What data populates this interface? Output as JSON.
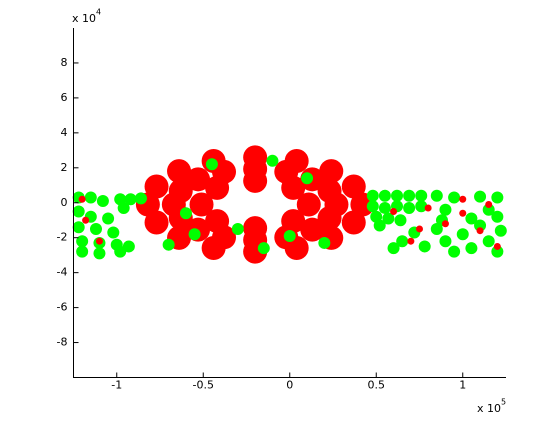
{
  "chart_data": {
    "type": "scatter",
    "x_multiplier": {
      "base": "x 10",
      "exponent": "5"
    },
    "y_multiplier": {
      "base": "x 10",
      "exponent": "4"
    },
    "xlim": [
      -1.25,
      1.25
    ],
    "xticks": [
      -1,
      -0.5,
      0,
      0.5,
      1
    ],
    "ylim": [
      -10,
      10
    ],
    "yticks": [
      -8,
      -6,
      -4,
      -2,
      0,
      2,
      4,
      6,
      8
    ],
    "grid": false,
    "series": [
      {
        "color": "#ff0000",
        "x": [
          0.42,
          0.37,
          0.24,
          0.04,
          -0.2,
          -0.44,
          -0.64,
          -0.77,
          -0.82,
          -0.77,
          -0.64,
          -0.44,
          -0.2,
          0.04,
          0.24,
          0.37,
          0.27,
          0.23,
          0.13,
          -0.02,
          -0.2,
          -0.38,
          -0.53,
          -0.63,
          -0.67,
          -0.63,
          -0.53,
          -0.38,
          -0.2,
          -0.02,
          0.13,
          0.23,
          0.11,
          0.02,
          -0.2,
          -0.42,
          -0.51,
          -0.42,
          -0.2,
          0.02
        ],
        "values": [
          -0.1,
          0.93,
          1.81,
          2.39,
          2.6,
          2.39,
          1.81,
          0.93,
          -0.1,
          -1.13,
          -2.01,
          -2.59,
          -2.8,
          -2.59,
          -2.01,
          -1.13,
          -0.1,
          0.68,
          1.34,
          1.77,
          1.93,
          1.77,
          1.34,
          0.68,
          -0.1,
          -0.88,
          -1.54,
          -1.98,
          -2.13,
          -1.98,
          -1.54,
          -0.88,
          -0.1,
          0.85,
          1.25,
          0.85,
          -0.1,
          -1.05,
          -1.45,
          -1.05
        ]
      },
      {
        "color": "#00ff00",
        "x": [
          -1.22,
          -1.15,
          -1.08,
          -1.22,
          -1.15,
          -1.05,
          -1.22,
          -1.12,
          -1.02,
          -1.2,
          -1.1,
          -1.0,
          -0.93,
          -1.2,
          -1.1,
          -0.98,
          -0.98,
          -0.92,
          -0.86,
          -0.96,
          0.48,
          0.55,
          0.62,
          0.69,
          0.76,
          0.48,
          0.55,
          0.62,
          0.69,
          0.76,
          0.5,
          0.57,
          0.64,
          0.52,
          0.6,
          0.65,
          0.72,
          0.78,
          0.85,
          0.9,
          0.95,
          1.0,
          1.05,
          1.1,
          1.15,
          1.2,
          1.22,
          0.88,
          1.05,
          1.2,
          0.85,
          0.95,
          1.1,
          1.2,
          0.9,
          1.15,
          -0.45,
          -0.1,
          0.1,
          -0.6,
          -0.3,
          0.0,
          -0.7,
          0.2,
          -0.15,
          -0.55
        ],
        "values": [
          0.3,
          0.3,
          0.1,
          -0.5,
          -0.8,
          -0.9,
          -1.4,
          -1.5,
          -1.7,
          -2.2,
          -2.3,
          -2.4,
          -2.5,
          -2.8,
          -2.9,
          -2.8,
          0.2,
          0.2,
          0.25,
          -0.3,
          0.4,
          0.4,
          0.4,
          0.4,
          0.4,
          -0.2,
          -0.3,
          -0.2,
          -0.3,
          -0.2,
          -0.8,
          -0.9,
          -1.0,
          -1.3,
          -2.6,
          -2.2,
          -1.7,
          -2.5,
          -1.5,
          -2.2,
          -2.8,
          -1.8,
          -2.6,
          -1.3,
          -2.2,
          -2.8,
          -1.6,
          -1.0,
          -0.9,
          -0.8,
          0.4,
          0.3,
          0.35,
          0.3,
          -0.4,
          -0.4,
          2.2,
          2.4,
          1.4,
          -0.6,
          -1.5,
          -1.9,
          -2.4,
          -2.3,
          -2.6,
          -1.8
        ]
      },
      {
        "color": "#ff0000",
        "x": [
          0.6,
          0.8,
          1.0,
          1.15,
          0.9,
          1.1,
          0.7,
          1.2,
          1.0,
          0.75,
          -1.2,
          -1.1,
          -1.18
        ],
        "values": [
          -0.5,
          -0.3,
          -0.6,
          -0.1,
          -1.2,
          -1.6,
          -2.2,
          -2.5,
          0.2,
          -1.5,
          0.2,
          -2.2,
          -1.0
        ]
      }
    ]
  }
}
